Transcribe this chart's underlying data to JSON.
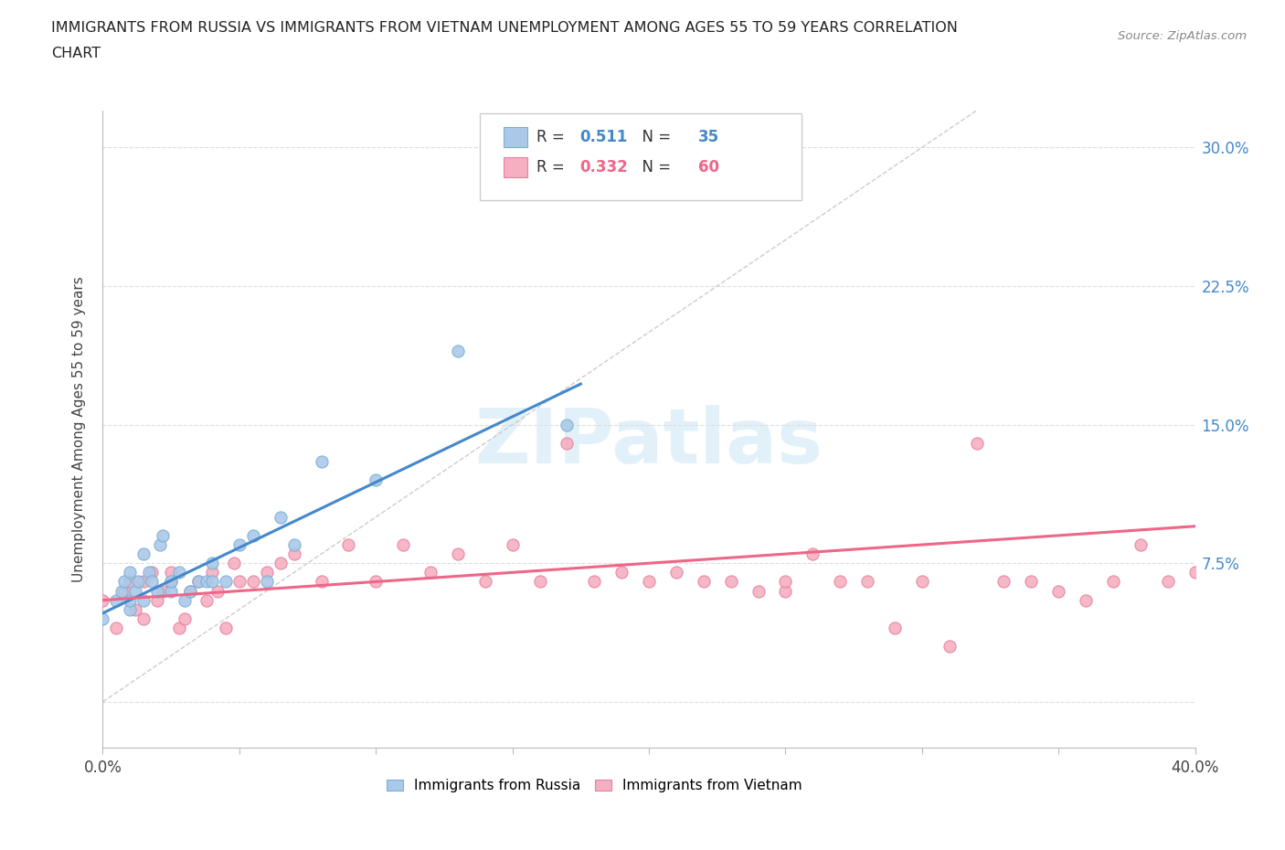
{
  "title_line1": "IMMIGRANTS FROM RUSSIA VS IMMIGRANTS FROM VIETNAM UNEMPLOYMENT AMONG AGES 55 TO 59 YEARS CORRELATION",
  "title_line2": "CHART",
  "source": "Source: ZipAtlas.com",
  "ylabel": "Unemployment Among Ages 55 to 59 years",
  "xlim": [
    0.0,
    0.4
  ],
  "ylim": [
    -0.025,
    0.32
  ],
  "xticks": [
    0.0,
    0.05,
    0.1,
    0.15,
    0.2,
    0.25,
    0.3,
    0.35,
    0.4
  ],
  "xtick_labels": [
    "0.0%",
    "",
    "",
    "",
    "",
    "",
    "",
    "",
    "40.0%"
  ],
  "ytick_positions": [
    0.0,
    0.075,
    0.15,
    0.225,
    0.3
  ],
  "ytick_labels": [
    "",
    "7.5%",
    "15.0%",
    "22.5%",
    "30.0%"
  ],
  "russia_color": "#aac9e8",
  "russia_edge": "#7aafd4",
  "vietnam_color": "#f5afc0",
  "vietnam_edge": "#e880a0",
  "russia_R": 0.511,
  "russia_N": 35,
  "vietnam_R": 0.332,
  "vietnam_N": 60,
  "russia_line_color": "#4488cc",
  "vietnam_line_color": "#ee6688",
  "diagonal_color": "#cccccc",
  "russia_line_x": [
    0.0,
    0.175
  ],
  "russia_line_y": [
    0.048,
    0.172
  ],
  "vietnam_line_x": [
    0.0,
    0.4
  ],
  "vietnam_line_y": [
    0.055,
    0.095
  ],
  "russia_scatter_x": [
    0.0,
    0.005,
    0.007,
    0.008,
    0.01,
    0.01,
    0.01,
    0.012,
    0.013,
    0.015,
    0.015,
    0.017,
    0.018,
    0.02,
    0.021,
    0.022,
    0.025,
    0.025,
    0.028,
    0.03,
    0.032,
    0.035,
    0.038,
    0.04,
    0.04,
    0.045,
    0.05,
    0.055,
    0.06,
    0.065,
    0.07,
    0.08,
    0.1,
    0.13,
    0.17
  ],
  "russia_scatter_y": [
    0.045,
    0.055,
    0.06,
    0.065,
    0.05,
    0.055,
    0.07,
    0.06,
    0.065,
    0.055,
    0.08,
    0.07,
    0.065,
    0.06,
    0.085,
    0.09,
    0.06,
    0.065,
    0.07,
    0.055,
    0.06,
    0.065,
    0.065,
    0.065,
    0.075,
    0.065,
    0.085,
    0.09,
    0.065,
    0.1,
    0.085,
    0.13,
    0.12,
    0.19,
    0.15
  ],
  "vietnam_scatter_x": [
    0.0,
    0.005,
    0.008,
    0.01,
    0.012,
    0.015,
    0.015,
    0.018,
    0.02,
    0.022,
    0.025,
    0.025,
    0.028,
    0.03,
    0.032,
    0.035,
    0.038,
    0.04,
    0.042,
    0.045,
    0.048,
    0.05,
    0.055,
    0.06,
    0.065,
    0.07,
    0.08,
    0.09,
    0.1,
    0.11,
    0.12,
    0.13,
    0.14,
    0.15,
    0.16,
    0.17,
    0.18,
    0.19,
    0.2,
    0.21,
    0.22,
    0.23,
    0.24,
    0.25,
    0.26,
    0.27,
    0.28,
    0.29,
    0.3,
    0.31,
    0.32,
    0.33,
    0.34,
    0.35,
    0.36,
    0.37,
    0.38,
    0.39,
    0.4,
    0.25
  ],
  "vietnam_scatter_y": [
    0.055,
    0.04,
    0.06,
    0.065,
    0.05,
    0.045,
    0.065,
    0.07,
    0.055,
    0.06,
    0.065,
    0.07,
    0.04,
    0.045,
    0.06,
    0.065,
    0.055,
    0.07,
    0.06,
    0.04,
    0.075,
    0.065,
    0.065,
    0.07,
    0.075,
    0.08,
    0.065,
    0.085,
    0.065,
    0.085,
    0.07,
    0.08,
    0.065,
    0.085,
    0.065,
    0.14,
    0.065,
    0.07,
    0.065,
    0.07,
    0.065,
    0.065,
    0.06,
    0.06,
    0.08,
    0.065,
    0.065,
    0.04,
    0.065,
    0.03,
    0.14,
    0.065,
    0.065,
    0.06,
    0.055,
    0.065,
    0.085,
    0.065,
    0.07,
    0.065
  ]
}
